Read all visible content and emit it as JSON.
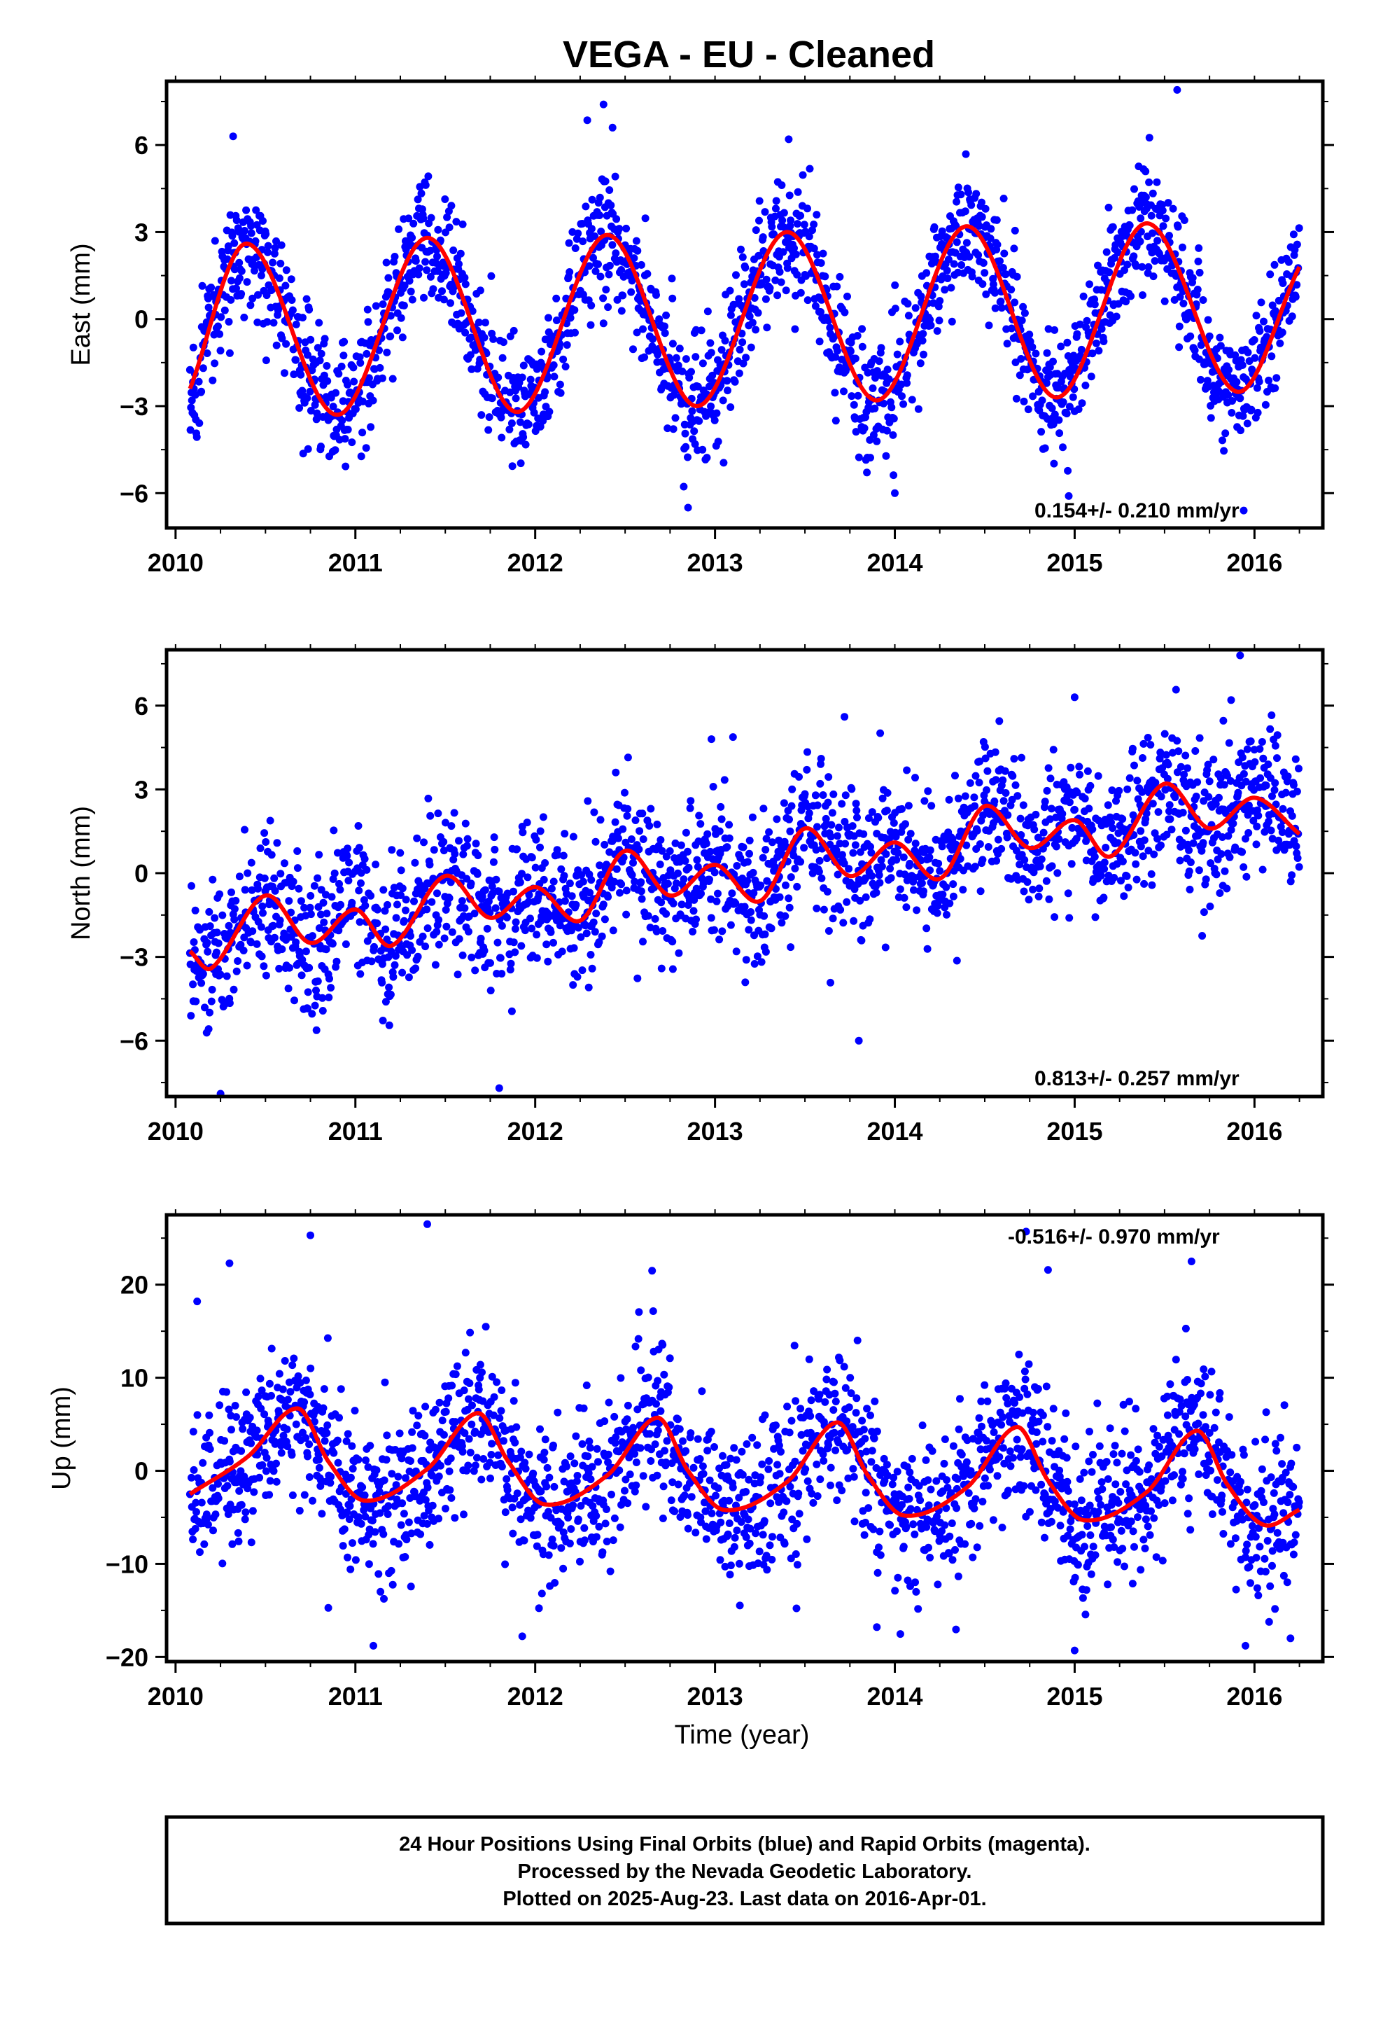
{
  "title": "VEGA  - EU - Cleaned",
  "footer": {
    "line1": "24 Hour Positions Using Final Orbits (blue) and Rapid Orbits (magenta).",
    "line2": "Processed by the Nevada Geodetic Laboratory.",
    "line3": "Plotted on 2025-Aug-23. Last data on 2016-Apr-01."
  },
  "colors": {
    "data_points": "#0000ff",
    "model_fit": "#ff0000",
    "frame": "#000000"
  },
  "chart_data": [
    {
      "type": "scatter",
      "ylabel": "East (mm)",
      "xlabel": "",
      "xlim": [
        2009.95,
        2016.38
      ],
      "ylim": [
        -7.2,
        8.2
      ],
      "xticks": [
        2010,
        2011,
        2012,
        2013,
        2014,
        2015,
        2016
      ],
      "yticks": [
        -6,
        -3,
        0,
        3,
        6
      ],
      "rate_text": "0.154+/- 0.210 mm/yr",
      "rate_position": "bottom-right",
      "data_range": [
        2010.08,
        2016.25
      ],
      "model": {
        "offset": -0.05,
        "rate": 0.154,
        "t0": 2013.0,
        "annual_cos": -2.85,
        "annual_sin": 0.2,
        "semiannual_cos": 0.0,
        "semiannual_sin": 0.0
      },
      "fit_points": [
        [
          2010.08,
          -2.4
        ],
        [
          2010.4,
          2.6
        ],
        [
          2010.9,
          -3.3
        ],
        [
          2011.4,
          2.8
        ],
        [
          2011.9,
          -3.2
        ],
        [
          2012.4,
          2.9
        ],
        [
          2012.9,
          -3.0
        ],
        [
          2013.4,
          3.0
        ],
        [
          2013.9,
          -2.8
        ],
        [
          2014.4,
          3.2
        ],
        [
          2014.9,
          -2.7
        ],
        [
          2015.4,
          3.3
        ],
        [
          2015.9,
          -2.5
        ],
        [
          2016.25,
          1.8
        ]
      ],
      "noise_sd": 1.1,
      "outliers": [
        [
          2012.38,
          7.4
        ],
        [
          2015.57,
          7.9
        ],
        [
          2012.43,
          6.6
        ],
        [
          2012.85,
          -6.5
        ],
        [
          2014.0,
          -6.0
        ],
        [
          2015.94,
          -6.6
        ],
        [
          2010.32,
          6.3
        ],
        [
          2013.41,
          6.2
        ]
      ]
    },
    {
      "type": "scatter",
      "ylabel": "North (mm)",
      "xlabel": "",
      "xlim": [
        2009.95,
        2016.38
      ],
      "ylim": [
        -8.0,
        8.0
      ],
      "xticks": [
        2010,
        2011,
        2012,
        2013,
        2014,
        2015,
        2016
      ],
      "yticks": [
        -6,
        -3,
        0,
        3,
        6
      ],
      "rate_text": "0.813+/- 0.257 mm/yr",
      "rate_position": "bottom-right",
      "data_range": [
        2010.08,
        2016.25
      ],
      "model": {
        "offset": 0.0,
        "rate": 0.813,
        "t0": 2013.0,
        "annual_cos": 0.0,
        "annual_sin": 0.0,
        "semiannual_cos": 0.0,
        "semiannual_sin": 0.0,
        "steps": [
          [
            2014.28,
            2.0
          ]
        ]
      },
      "fit_points": [
        [
          2010.08,
          -2.8
        ],
        [
          2010.2,
          -3.4
        ],
        [
          2010.5,
          -0.8
        ],
        [
          2010.75,
          -2.5
        ],
        [
          2011.0,
          -1.3
        ],
        [
          2011.2,
          -2.6
        ],
        [
          2011.5,
          -0.1
        ],
        [
          2011.75,
          -1.6
        ],
        [
          2012.0,
          -0.5
        ],
        [
          2012.25,
          -1.7
        ],
        [
          2012.5,
          0.8
        ],
        [
          2012.75,
          -0.8
        ],
        [
          2013.0,
          0.3
        ],
        [
          2013.25,
          -1.0
        ],
        [
          2013.5,
          1.6
        ],
        [
          2013.75,
          -0.1
        ],
        [
          2014.0,
          1.1
        ],
        [
          2014.25,
          -0.2
        ],
        [
          2014.5,
          2.4
        ],
        [
          2014.75,
          0.9
        ],
        [
          2015.0,
          1.9
        ],
        [
          2015.2,
          0.6
        ],
        [
          2015.5,
          3.2
        ],
        [
          2015.75,
          1.6
        ],
        [
          2016.0,
          2.7
        ],
        [
          2016.25,
          1.4
        ]
      ],
      "noise_sd": 1.3,
      "outliers": [
        [
          2010.25,
          -7.9
        ],
        [
          2011.8,
          -7.7
        ],
        [
          2015.92,
          7.8
        ],
        [
          2015.0,
          6.3
        ],
        [
          2012.98,
          4.8
        ],
        [
          2013.72,
          5.6
        ],
        [
          2013.8,
          -6.0
        ],
        [
          2015.87,
          6.2
        ]
      ]
    },
    {
      "type": "scatter",
      "ylabel": "Up (mm)",
      "xlabel": "Time (year)",
      "xlim": [
        2009.95,
        2016.38
      ],
      "ylim": [
        -20.5,
        27.5
      ],
      "xticks": [
        2010,
        2011,
        2012,
        2013,
        2014,
        2015,
        2016
      ],
      "yticks": [
        -20,
        -10,
        0,
        10,
        20
      ],
      "rate_text": "-0.516+/- 0.970 mm/yr",
      "rate_position": "top-right",
      "data_range": [
        2010.08,
        2016.25
      ],
      "model": {
        "offset": 0.0,
        "rate": -0.516,
        "t0": 2013.0,
        "annual_cos": 0.0,
        "annual_sin": 0.0,
        "semiannual_cos": 0.0,
        "semiannual_sin": 0.0
      },
      "fit_points": [
        [
          2010.08,
          -2.5
        ],
        [
          2010.4,
          1.5
        ],
        [
          2010.68,
          6.7
        ],
        [
          2010.85,
          1.0
        ],
        [
          2011.05,
          -3.2
        ],
        [
          2011.4,
          0.2
        ],
        [
          2011.68,
          6.2
        ],
        [
          2011.85,
          1.0
        ],
        [
          2012.05,
          -3.6
        ],
        [
          2012.4,
          -0.5
        ],
        [
          2012.68,
          5.7
        ],
        [
          2012.85,
          0.0
        ],
        [
          2013.05,
          -4.2
        ],
        [
          2013.4,
          -1.2
        ],
        [
          2013.68,
          5.2
        ],
        [
          2013.85,
          -0.5
        ],
        [
          2014.05,
          -4.8
        ],
        [
          2014.4,
          -1.8
        ],
        [
          2014.68,
          4.7
        ],
        [
          2014.85,
          -1.0
        ],
        [
          2015.05,
          -5.3
        ],
        [
          2015.4,
          -2.3
        ],
        [
          2015.68,
          4.3
        ],
        [
          2015.85,
          -1.5
        ],
        [
          2016.05,
          -5.8
        ],
        [
          2016.25,
          -4.2
        ]
      ],
      "noise_sd": 4.2,
      "outliers": [
        [
          2011.4,
          26.5
        ],
        [
          2010.75,
          25.3
        ],
        [
          2014.73,
          25.7
        ],
        [
          2010.3,
          22.3
        ],
        [
          2012.65,
          21.5
        ],
        [
          2015.65,
          22.5
        ],
        [
          2011.1,
          -18.8
        ],
        [
          2013.9,
          -16.8
        ],
        [
          2015.0,
          -19.3
        ],
        [
          2015.95,
          -18.8
        ],
        [
          2016.2,
          -18.0
        ],
        [
          2010.12,
          18.2
        ]
      ]
    }
  ]
}
